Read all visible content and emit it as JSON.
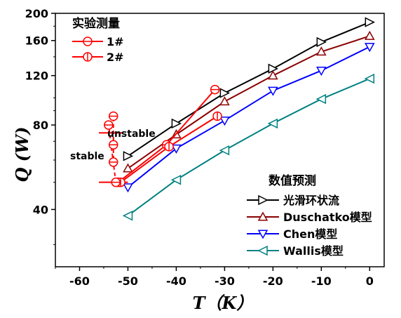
{
  "chart_data": {
    "type": "line",
    "xlabel": "T（K）",
    "ylabel": "Q (W)",
    "xlim": [
      -65,
      3
    ],
    "ylim": [
      25,
      200
    ],
    "y_scale": "log",
    "grid": false,
    "x_ticks": [
      -60,
      -50,
      -40,
      -30,
      -20,
      -10,
      0
    ],
    "x_tick_labels": [
      "-60",
      "-50",
      "-40",
      "-30",
      "-20",
      "-10",
      "0"
    ],
    "y_ticks": [
      40,
      80,
      120,
      160,
      200
    ],
    "y_tick_labels": [
      "40",
      "80",
      "120",
      "160",
      "200"
    ],
    "legend_experiment": {
      "title": "实验测量",
      "placement": "top-left",
      "entries": [
        "1#",
        "2#"
      ]
    },
    "legend_prediction": {
      "title": "数值预测",
      "placement": "bottom-right",
      "entries": [
        "光滑环状流",
        "Duschatko模型",
        "Chen模型",
        "Wallis模型"
      ]
    },
    "annotations": {
      "unstable": "unstable",
      "stable": "stable"
    },
    "series": [
      {
        "name": "光滑环状流",
        "color": "#000000",
        "marker": "triangle-right",
        "x": [
          -50,
          -40,
          -30,
          -20,
          -10,
          0
        ],
        "y": [
          62,
          81,
          104,
          127,
          158,
          186
        ]
      },
      {
        "name": "Duschatko模型",
        "color": "#8b0000",
        "marker": "triangle-up",
        "x": [
          -50,
          -40,
          -30,
          -20,
          -10,
          0
        ],
        "y": [
          56,
          74,
          97,
          120,
          146,
          166
        ]
      },
      {
        "name": "Chen模型",
        "color": "#0000ff",
        "marker": "triangle-down",
        "x": [
          -50,
          -40,
          -30,
          -20,
          -10,
          0
        ],
        "y": [
          48,
          66,
          83,
          106,
          125,
          152
        ]
      },
      {
        "name": "Wallis模型",
        "color": "#008080",
        "marker": "triangle-left",
        "x": [
          -50,
          -40,
          -30,
          -20,
          -10,
          0
        ],
        "y": [
          38,
          51,
          65,
          81,
          99,
          117
        ]
      },
      {
        "name": "1#",
        "color": "#ff0000",
        "marker": "circle-h",
        "x": [
          -52,
          -42,
          -32
        ],
        "y": [
          50,
          68,
          107
        ]
      },
      {
        "name": "2#",
        "color": "#ff0000",
        "marker": "circle-v",
        "x": [
          -51.5,
          -41.5,
          -31.5
        ],
        "y": [
          50,
          67,
          86
        ]
      },
      {
        "name": "1# (stability test)",
        "color": "#ff0000",
        "marker": "circle-h",
        "dashed": true,
        "x": [
          -52.5,
          -54,
          -53,
          -53,
          -53
        ],
        "y": [
          50,
          80,
          86,
          68,
          59
        ]
      }
    ],
    "guides": {
      "unstable_stable_line": {
        "x": [
          -56,
          -51
        ],
        "y": [
          75,
          75
        ]
      },
      "lower_bound_line": {
        "x": [
          -56,
          -50
        ],
        "y": [
          50,
          50
        ]
      }
    }
  }
}
